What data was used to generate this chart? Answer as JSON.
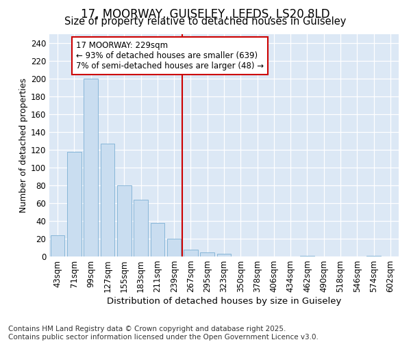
{
  "title1": "17, MOORWAY, GUISELEY, LEEDS, LS20 8LD",
  "title2": "Size of property relative to detached houses in Guiseley",
  "xlabel": "Distribution of detached houses by size in Guiseley",
  "ylabel": "Number of detached properties",
  "bin_labels": [
    "43sqm",
    "71sqm",
    "99sqm",
    "127sqm",
    "155sqm",
    "183sqm",
    "211sqm",
    "239sqm",
    "267sqm",
    "295sqm",
    "323sqm",
    "350sqm",
    "378sqm",
    "406sqm",
    "434sqm",
    "462sqm",
    "490sqm",
    "518sqm",
    "546sqm",
    "574sqm",
    "602sqm"
  ],
  "bar_values": [
    24,
    118,
    200,
    127,
    80,
    64,
    38,
    20,
    8,
    5,
    3,
    0,
    0,
    0,
    0,
    1,
    0,
    0,
    0,
    1,
    0
  ],
  "bar_color": "#c9ddf0",
  "bar_edge_color": "#7bafd4",
  "vline_x": 7.5,
  "vline_color": "#cc0000",
  "annotation_text": "17 MOORWAY: 229sqm\n← 93% of detached houses are smaller (639)\n7% of semi-detached houses are larger (48) →",
  "annotation_box_facecolor": "#ffffff",
  "annotation_box_edgecolor": "#cc0000",
  "ylim": [
    0,
    250
  ],
  "yticks": [
    0,
    20,
    40,
    60,
    80,
    100,
    120,
    140,
    160,
    180,
    200,
    220,
    240
  ],
  "fig_bg_color": "#ffffff",
  "plot_bg_color": "#dce8f5",
  "grid_color": "#ffffff",
  "footer": "Contains HM Land Registry data © Crown copyright and database right 2025.\nContains public sector information licensed under the Open Government Licence v3.0.",
  "title1_fontsize": 12,
  "title2_fontsize": 10.5,
  "xlabel_fontsize": 9.5,
  "ylabel_fontsize": 9,
  "tick_fontsize": 8.5,
  "annotation_fontsize": 8.5,
  "footer_fontsize": 7.5
}
